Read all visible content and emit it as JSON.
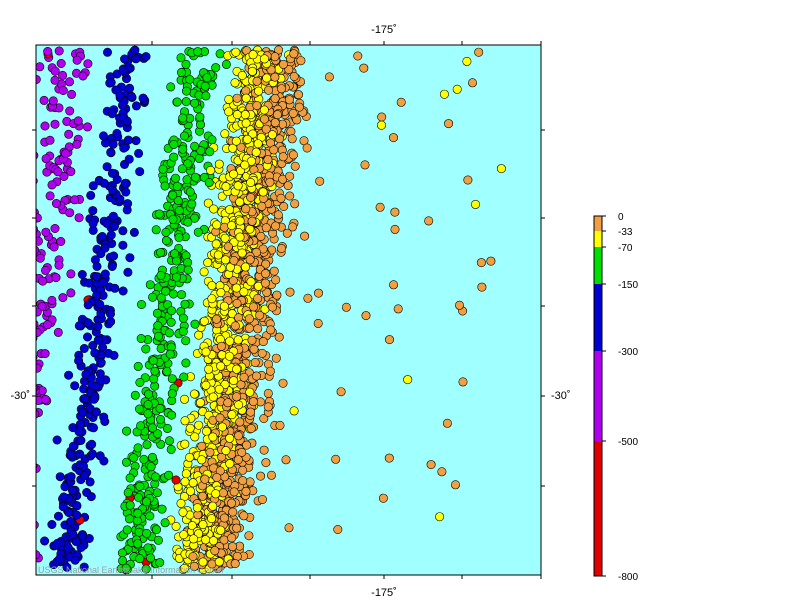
{
  "map": {
    "ocean_color": "#a0ffff",
    "top_axis_label": "-175˚",
    "bottom_axis_label": "-175˚",
    "left_axis_label": "-30˚",
    "right_axis_label": "-30˚",
    "credit": "USGS National Earthquake Information Center"
  },
  "legend": {
    "labels": [
      "0",
      "-33",
      "-70",
      "-150",
      "-300",
      "-500",
      "-800"
    ],
    "bands": [
      {
        "range": "0 to -33",
        "color": "#f0a040"
      },
      {
        "range": "-33 to -70",
        "color": "#ffff00"
      },
      {
        "range": "-70 to -150",
        "color": "#00e000"
      },
      {
        "range": "-150 to -300",
        "color": "#0000d0"
      },
      {
        "range": "-300 to -500",
        "color": "#b000f0"
      },
      {
        "range": "-500 to -800",
        "color": "#e00000"
      }
    ]
  },
  "events": {
    "depth_colors": {
      "shallow": "#f0a040",
      "intermediate_upper": "#ffff00",
      "intermediate": "#00e000",
      "deep_upper": "#0000d0",
      "deep": "#b000f0",
      "very_deep": "#e00000"
    }
  }
}
